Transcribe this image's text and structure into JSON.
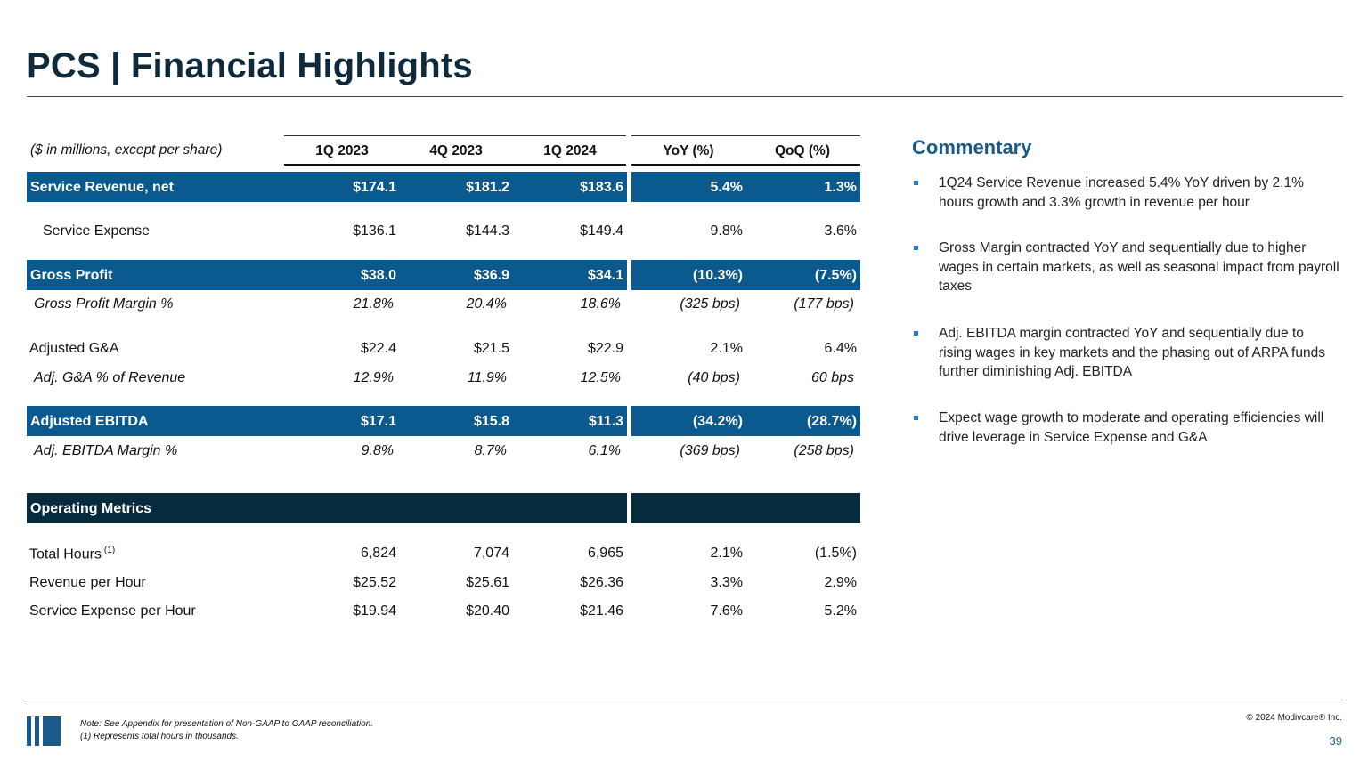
{
  "title": "PCS | Financial Highlights",
  "table": {
    "header_label": "($ in millions, except per share)",
    "columns": [
      "1Q 2023",
      "4Q 2023",
      "1Q 2024",
      "YoY (%)",
      "QoQ (%)"
    ],
    "rows": [
      {
        "label": "Service Revenue, net",
        "values": [
          "$174.1",
          "$181.2",
          "$183.6",
          "5.4%",
          "1.3%"
        ],
        "style": "band"
      },
      {
        "label": "Service Expense",
        "values": [
          "$136.1",
          "$144.3",
          "$149.4",
          "9.8%",
          "3.6%"
        ],
        "style": "indent"
      },
      {
        "label": "Gross Profit",
        "values": [
          "$38.0",
          "$36.9",
          "$34.1",
          "(10.3%)",
          "(7.5%)"
        ],
        "style": "band"
      },
      {
        "label": "Gross Profit Margin %",
        "values": [
          "21.8%",
          "20.4%",
          "18.6%",
          "(325 bps)",
          "(177 bps)"
        ],
        "style": "italic"
      },
      {
        "label": "Adjusted G&A",
        "values": [
          "$22.4",
          "$21.5",
          "$22.9",
          "2.1%",
          "6.4%"
        ],
        "style": "plain"
      },
      {
        "label": "Adj. G&A % of Revenue",
        "values": [
          "12.9%",
          "11.9%",
          "12.5%",
          "(40 bps)",
          "60 bps"
        ],
        "style": "italic"
      },
      {
        "label": "Adjusted EBITDA",
        "values": [
          "$17.1",
          "$15.8",
          "$11.3",
          "(34.2%)",
          "(28.7%)"
        ],
        "style": "band"
      },
      {
        "label": "Adj. EBITDA Margin %",
        "values": [
          "9.8%",
          "8.7%",
          "6.1%",
          "(369 bps)",
          "(258 bps)"
        ],
        "style": "italic"
      },
      {
        "label": "Operating Metrics",
        "values": [],
        "style": "dark"
      },
      {
        "label": "Total Hours",
        "footnote": "(1)",
        "values": [
          "6,824",
          "7,074",
          "6,965",
          "2.1%",
          "(1.5%)"
        ],
        "style": "plain"
      },
      {
        "label": "Revenue per Hour",
        "values": [
          "$25.52",
          "$25.61",
          "$26.36",
          "3.3%",
          "2.9%"
        ],
        "style": "plain"
      },
      {
        "label": "Service Expense per Hour",
        "values": [
          "$19.94",
          "$20.40",
          "$21.46",
          "7.6%",
          "5.2%"
        ],
        "style": "plain"
      }
    ]
  },
  "commentary": {
    "title": "Commentary",
    "bullets": [
      "1Q24 Service Revenue increased 5.4% YoY driven by 2.1% hours growth and 3.3% growth in revenue per hour",
      "Gross Margin contracted YoY and sequentially due to higher wages in certain markets, as well as seasonal impact from payroll taxes",
      "Adj. EBITDA margin contracted YoY and sequentially due to rising wages in key markets and the phasing out of ARPA funds further diminishing Adj. EBITDA",
      "Expect wage growth to moderate and operating efficiencies will drive leverage in Service Expense and G&A"
    ]
  },
  "footer": {
    "note1": "Note: See Appendix for presentation of Non-GAAP to GAAP reconciliation.",
    "note2": "(1) Represents total hours in thousands.",
    "copyright": "© 2024 Modivcare® Inc.",
    "page": "39"
  },
  "colors": {
    "band": "#0b5a8f",
    "dark": "#062b3c",
    "title": "#0e2a3c",
    "accent": "#1a5a8a"
  }
}
